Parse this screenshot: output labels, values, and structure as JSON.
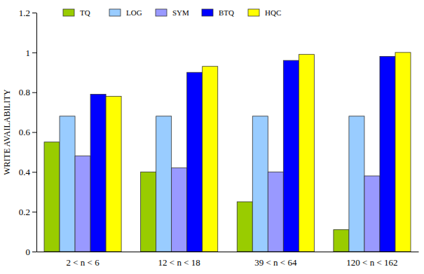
{
  "chart_data": {
    "type": "bar",
    "y_label": "WRITE AVAILABILITY",
    "categories": [
      "2 < n < 6",
      "12 < n < 18",
      "39 < n < 64",
      "120 < n < 162"
    ],
    "series": [
      {
        "name": "TQ",
        "color": "#99cc00",
        "values": [
          0.55,
          0.4,
          0.25,
          0.11
        ]
      },
      {
        "name": "LOG",
        "color": "#99ccff",
        "values": [
          0.68,
          0.68,
          0.68,
          0.68
        ]
      },
      {
        "name": "SYM",
        "color": "#9999ff",
        "values": [
          0.48,
          0.42,
          0.4,
          0.38
        ]
      },
      {
        "name": "BTQ",
        "color": "#0000ff",
        "values": [
          0.79,
          0.9,
          0.96,
          0.98
        ]
      },
      {
        "name": "HQC",
        "color": "#ffff00",
        "values": [
          0.78,
          0.93,
          0.99,
          1.0
        ]
      }
    ],
    "ylim": [
      0,
      1.2
    ],
    "yticks": [
      0,
      0.2,
      0.4,
      0.6,
      0.8,
      1,
      1.2
    ],
    "grid": false,
    "legend": "upper left"
  }
}
